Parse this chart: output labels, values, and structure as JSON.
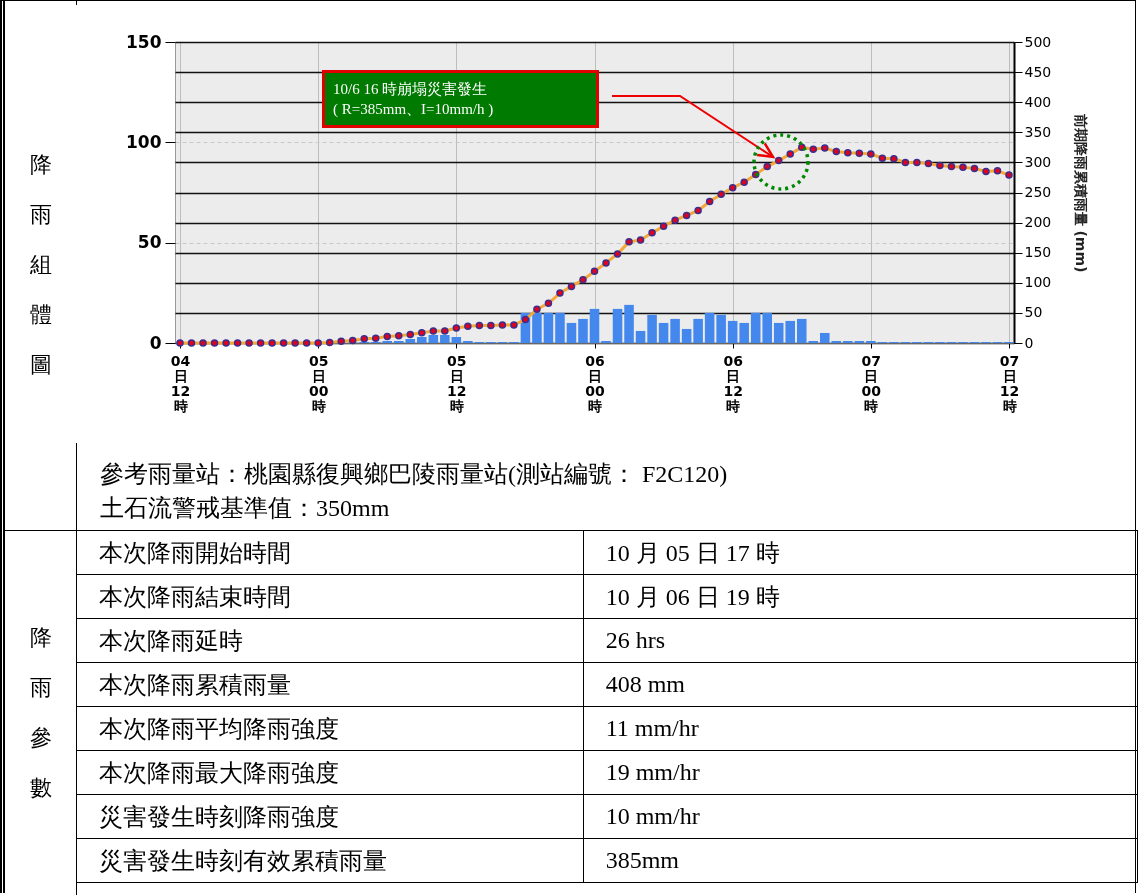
{
  "chart_data": {
    "type": "bar",
    "ylabel": "降雨組體圖",
    "y2label": "前期降雨累積雨量 (mm)",
    "categories": [
      "04\n日\n12\n時",
      null,
      null,
      null,
      null,
      null,
      null,
      null,
      null,
      null,
      null,
      null,
      "05\n日\n00\n時",
      null,
      null,
      null,
      null,
      null,
      null,
      null,
      null,
      null,
      null,
      null,
      "05\n日\n12\n時",
      null,
      null,
      null,
      null,
      null,
      null,
      null,
      null,
      null,
      null,
      null,
      "06\n日\n00\n時",
      null,
      null,
      null,
      null,
      null,
      null,
      null,
      null,
      null,
      null,
      null,
      "06\n日\n12\n時",
      null,
      null,
      null,
      null,
      null,
      null,
      null,
      null,
      null,
      null,
      null,
      "07\n日\n00\n時",
      null,
      null,
      null,
      null,
      null,
      null,
      null,
      null,
      null,
      null,
      null,
      "07\n日\n12\n時"
    ],
    "ylim": [
      0,
      150
    ],
    "yticks": [
      0,
      50,
      100,
      150
    ],
    "y2lim": [
      0,
      500
    ],
    "y2ticks": [
      0,
      50,
      100,
      150,
      200,
      250,
      300,
      350,
      400,
      450,
      500
    ],
    "grid": true,
    "series": [
      {
        "color": "#4488ee",
        "values": [
          0,
          0,
          0,
          0,
          0,
          0,
          0,
          0,
          0,
          0,
          0,
          0,
          0,
          0.5,
          null,
          null,
          0.5,
          0.5,
          1,
          1,
          2,
          3,
          4,
          4,
          3,
          1,
          0.5,
          0.5,
          0.5,
          0.5,
          15,
          15,
          15,
          15,
          10,
          12,
          17,
          1,
          17,
          19,
          6,
          14,
          10,
          12,
          7,
          12,
          15,
          14,
          11,
          10,
          15,
          15,
          10,
          11,
          12,
          1,
          5,
          1,
          1,
          1,
          1,
          0.5,
          0.5,
          0.5,
          0.5,
          0.5,
          0.5,
          0.5,
          0.5,
          0.5,
          0.5,
          0.5,
          0.5
        ]
      },
      {
        "type": "line",
        "axis": "y2",
        "color": "#f5a83a",
        "marker": "circle",
        "line_style": "solid",
        "values": [
          0,
          0,
          0,
          0,
          0,
          0,
          0,
          0,
          0,
          0,
          0,
          0,
          0,
          1,
          3,
          4,
          7,
          8,
          11,
          12,
          14,
          17,
          20,
          20,
          25,
          28,
          29,
          29,
          30,
          30,
          39,
          56,
          66,
          83,
          94,
          105,
          119,
          133,
          148,
          168,
          171,
          183,
          194,
          204,
          212,
          220,
          235,
          247,
          258,
          267,
          280,
          293,
          303,
          314,
          325,
          322,
          324,
          318,
          316,
          315,
          314,
          307,
          306,
          300,
          300,
          298,
          295,
          293,
          292,
          290,
          285,
          286,
          279
        ]
      }
    ],
    "annotations": [
      "10/6 16 時崩塌災害發生\n( R=385mm、I=10mm/h )",
      "參考雨量站：桃園縣復興鄉巴陵雨量站(測站編號： F2C120)",
      "土石流警戒基準值：350mm",
      "降雨參數",
      "本次降雨開始時間",
      "10 月 05 日 17 時",
      "本次降雨結束時間",
      "10 月 06 日 19 時",
      "本次降雨延時",
      "26 hrs",
      "本次降雨累積雨量",
      "408 mm",
      "本次降雨平均降雨強度",
      "11 mm/hr",
      "本次降雨最大降雨強度",
      "19 mm/hr",
      "災害發生時刻降雨強度",
      "10 mm/hr",
      "災害發生時刻有效累積雨量",
      "385mm"
    ]
  }
}
